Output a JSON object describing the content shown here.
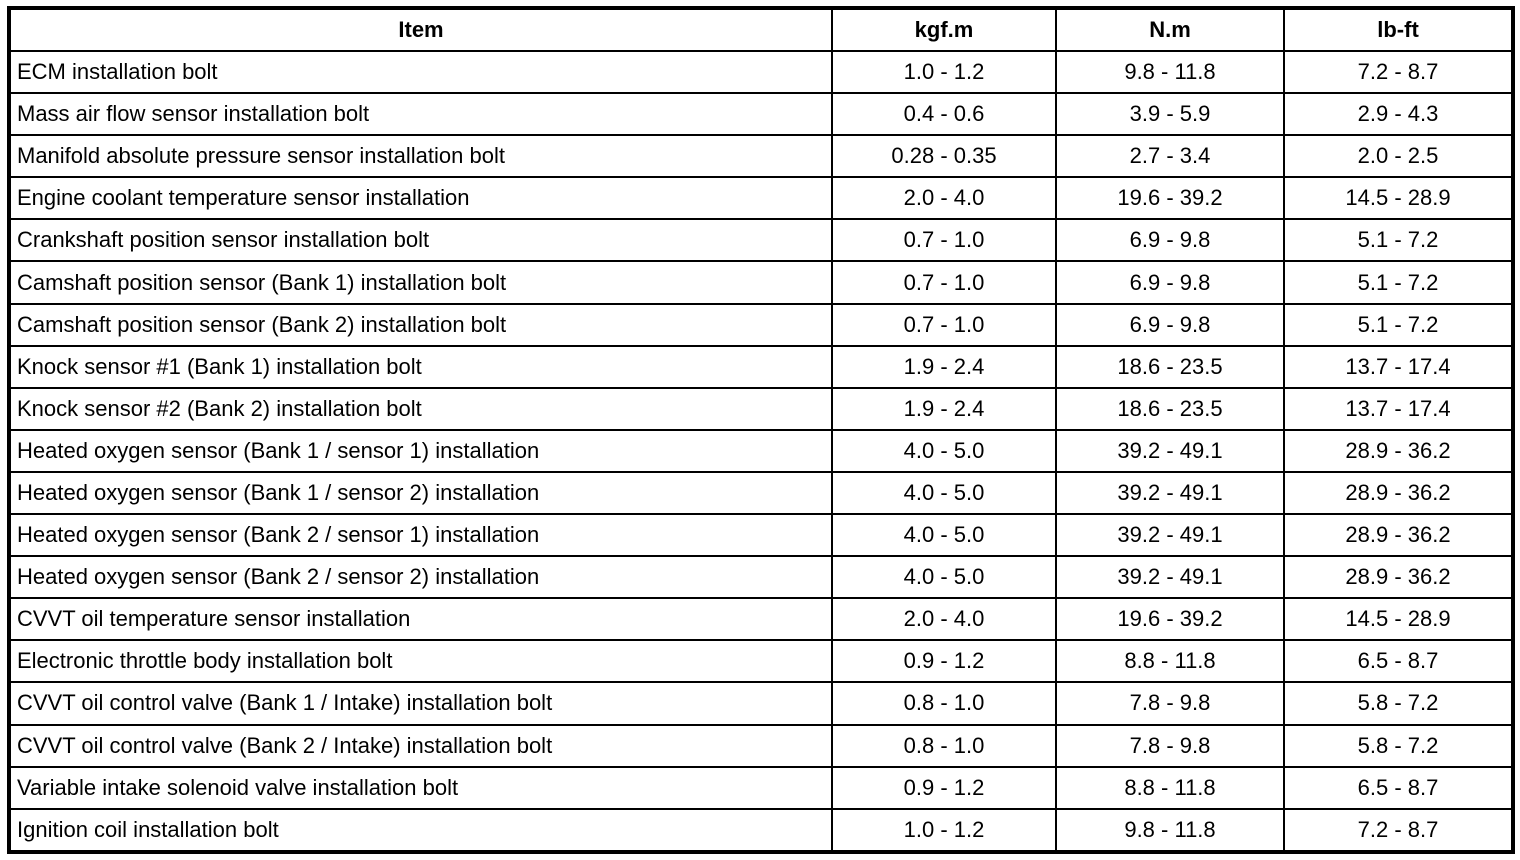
{
  "table": {
    "columns": [
      {
        "label": "Item"
      },
      {
        "label": "kgf.m"
      },
      {
        "label": "N.m"
      },
      {
        "label": "lb-ft"
      }
    ],
    "rows": [
      {
        "item": "ECM installation bolt",
        "kgf_m": "1.0 - 1.2",
        "n_m": "9.8 - 11.8",
        "lb_ft": "7.2 - 8.7"
      },
      {
        "item": "Mass air flow sensor installation bolt",
        "kgf_m": "0.4 - 0.6",
        "n_m": "3.9 - 5.9",
        "lb_ft": "2.9 - 4.3"
      },
      {
        "item": "Manifold absolute pressure sensor installation bolt",
        "kgf_m": "0.28 - 0.35",
        "n_m": "2.7 - 3.4",
        "lb_ft": "2.0 - 2.5"
      },
      {
        "item": "Engine coolant temperature sensor installation",
        "kgf_m": "2.0 - 4.0",
        "n_m": "19.6 - 39.2",
        "lb_ft": "14.5 - 28.9"
      },
      {
        "item": "Crankshaft position sensor installation bolt",
        "kgf_m": "0.7 - 1.0",
        "n_m": "6.9 - 9.8",
        "lb_ft": "5.1 - 7.2"
      },
      {
        "item": "Camshaft position sensor (Bank 1) installation bolt",
        "kgf_m": "0.7 - 1.0",
        "n_m": "6.9 - 9.8",
        "lb_ft": "5.1 - 7.2"
      },
      {
        "item": "Camshaft position sensor (Bank 2) installation bolt",
        "kgf_m": "0.7 - 1.0",
        "n_m": "6.9 - 9.8",
        "lb_ft": "5.1 - 7.2"
      },
      {
        "item": "Knock sensor #1 (Bank 1) installation bolt",
        "kgf_m": "1.9 - 2.4",
        "n_m": "18.6 - 23.5",
        "lb_ft": "13.7 - 17.4"
      },
      {
        "item": "Knock sensor #2 (Bank 2) installation bolt",
        "kgf_m": "1.9 - 2.4",
        "n_m": "18.6 - 23.5",
        "lb_ft": "13.7 - 17.4"
      },
      {
        "item": "Heated oxygen sensor (Bank 1 / sensor 1) installation",
        "kgf_m": "4.0 - 5.0",
        "n_m": "39.2 - 49.1",
        "lb_ft": "28.9 - 36.2"
      },
      {
        "item": "Heated oxygen sensor (Bank 1 / sensor 2) installation",
        "kgf_m": "4.0 - 5.0",
        "n_m": "39.2 - 49.1",
        "lb_ft": "28.9 - 36.2"
      },
      {
        "item": "Heated oxygen sensor (Bank 2 / sensor 1) installation",
        "kgf_m": "4.0 - 5.0",
        "n_m": "39.2 - 49.1",
        "lb_ft": "28.9 - 36.2"
      },
      {
        "item": "Heated oxygen sensor (Bank 2 / sensor 2) installation",
        "kgf_m": "4.0 - 5.0",
        "n_m": "39.2 - 49.1",
        "lb_ft": "28.9 - 36.2"
      },
      {
        "item": "CVVT oil temperature sensor installation",
        "kgf_m": "2.0 - 4.0",
        "n_m": "19.6 - 39.2",
        "lb_ft": "14.5 - 28.9"
      },
      {
        "item": "Electronic throttle body installation bolt",
        "kgf_m": "0.9 - 1.2",
        "n_m": "8.8 - 11.8",
        "lb_ft": "6.5 - 8.7"
      },
      {
        "item": "CVVT oil control valve (Bank 1 / Intake) installation bolt",
        "kgf_m": "0.8 - 1.0",
        "n_m": "7.8 - 9.8",
        "lb_ft": "5.8 - 7.2"
      },
      {
        "item": "CVVT oil control valve (Bank 2 / Intake) installation bolt",
        "kgf_m": "0.8 - 1.0",
        "n_m": "7.8 - 9.8",
        "lb_ft": "5.8 - 7.2"
      },
      {
        "item": "Variable intake solenoid valve installation bolt",
        "kgf_m": "0.9 - 1.2",
        "n_m": "8.8 - 11.8",
        "lb_ft": "6.5 - 8.7"
      },
      {
        "item": "Ignition coil installation bolt",
        "kgf_m": "1.0 - 1.2",
        "n_m": "9.8 - 11.8",
        "lb_ft": "7.2 - 8.7"
      }
    ]
  }
}
